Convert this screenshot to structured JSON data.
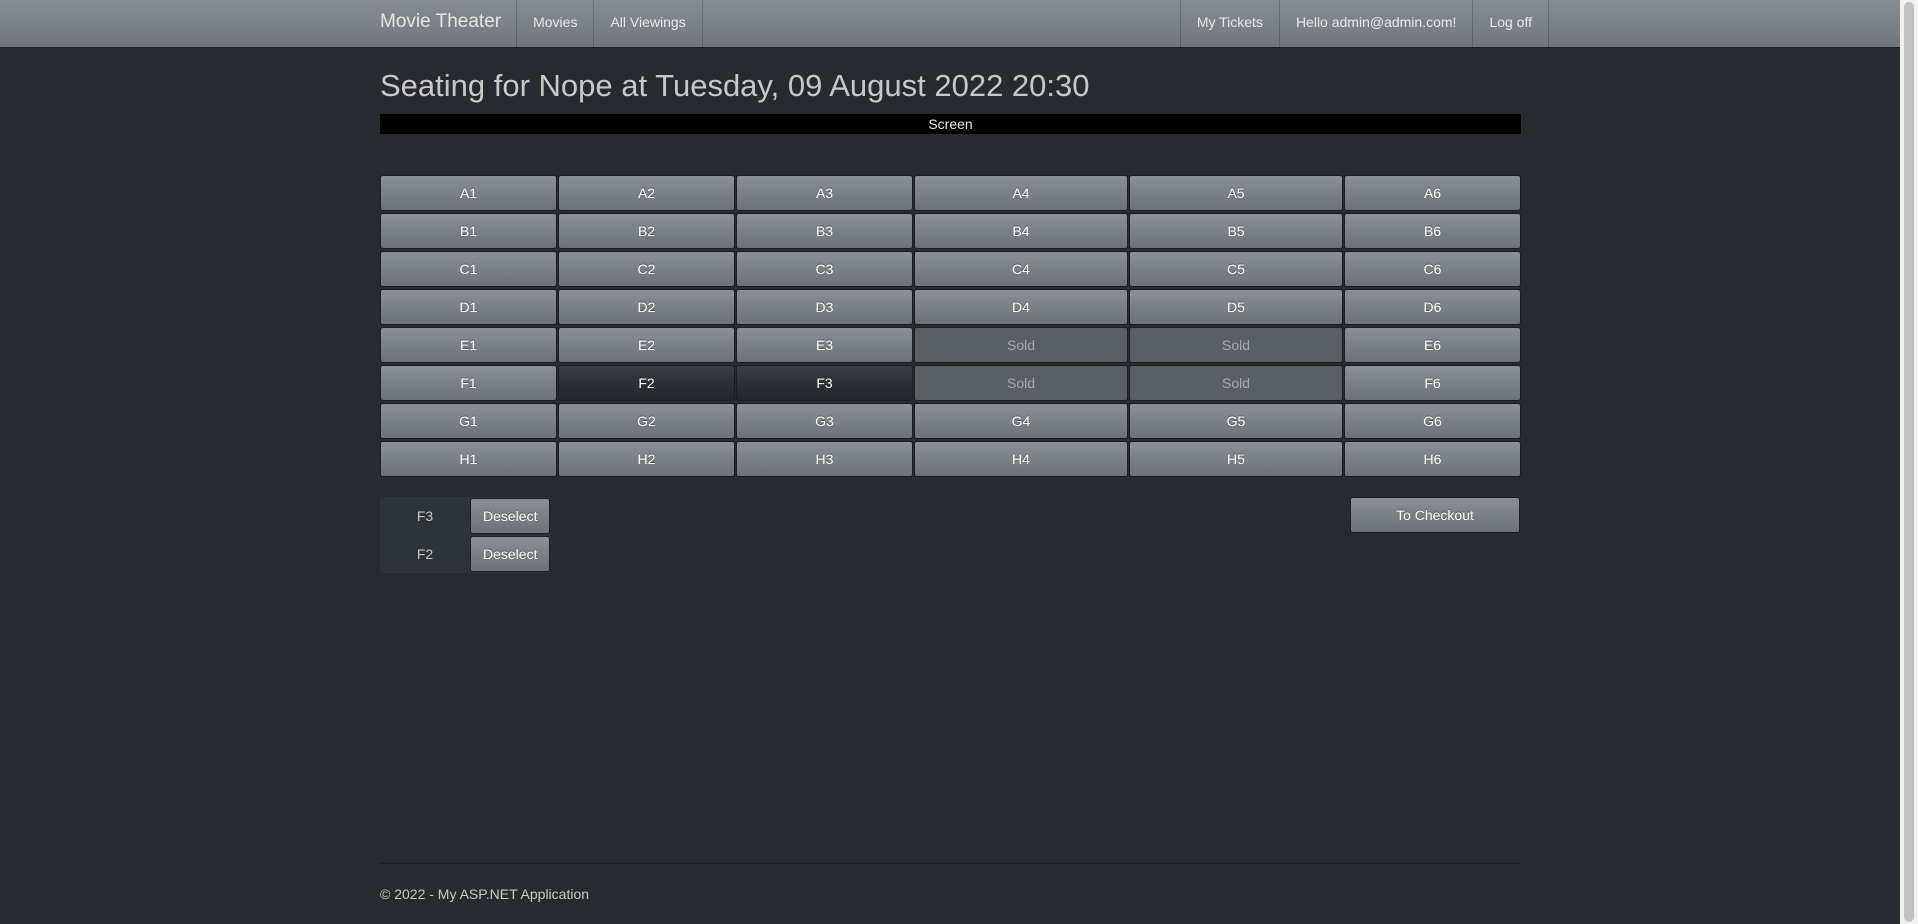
{
  "navbar": {
    "brand": "Movie Theater",
    "left_items": [
      "Movies",
      "All Viewings"
    ],
    "right_items": [
      "My Tickets",
      "Hello admin@admin.com!",
      "Log off"
    ]
  },
  "page": {
    "title": "Seating for Nope at Tuesday, 09 August 2022 20:30",
    "screen_label": "Screen"
  },
  "seats": [
    [
      {
        "label": "A1",
        "status": "available"
      },
      {
        "label": "A2",
        "status": "available"
      },
      {
        "label": "A3",
        "status": "available"
      },
      {
        "label": "A4",
        "status": "available"
      },
      {
        "label": "A5",
        "status": "available"
      },
      {
        "label": "A6",
        "status": "available"
      }
    ],
    [
      {
        "label": "B1",
        "status": "available"
      },
      {
        "label": "B2",
        "status": "available"
      },
      {
        "label": "B3",
        "status": "available"
      },
      {
        "label": "B4",
        "status": "available"
      },
      {
        "label": "B5",
        "status": "available"
      },
      {
        "label": "B6",
        "status": "available"
      }
    ],
    [
      {
        "label": "C1",
        "status": "available"
      },
      {
        "label": "C2",
        "status": "available"
      },
      {
        "label": "C3",
        "status": "available"
      },
      {
        "label": "C4",
        "status": "available"
      },
      {
        "label": "C5",
        "status": "available"
      },
      {
        "label": "C6",
        "status": "available"
      }
    ],
    [
      {
        "label": "D1",
        "status": "available"
      },
      {
        "label": "D2",
        "status": "available"
      },
      {
        "label": "D3",
        "status": "available"
      },
      {
        "label": "D4",
        "status": "available"
      },
      {
        "label": "D5",
        "status": "available"
      },
      {
        "label": "D6",
        "status": "available"
      }
    ],
    [
      {
        "label": "E1",
        "status": "available"
      },
      {
        "label": "E2",
        "status": "available"
      },
      {
        "label": "E3",
        "status": "available"
      },
      {
        "label": "Sold",
        "status": "sold"
      },
      {
        "label": "Sold",
        "status": "sold"
      },
      {
        "label": "E6",
        "status": "available"
      }
    ],
    [
      {
        "label": "F1",
        "status": "available"
      },
      {
        "label": "F2",
        "status": "selected"
      },
      {
        "label": "F3",
        "status": "selected"
      },
      {
        "label": "Sold",
        "status": "sold"
      },
      {
        "label": "Sold",
        "status": "sold"
      },
      {
        "label": "F6",
        "status": "available"
      }
    ],
    [
      {
        "label": "G1",
        "status": "available"
      },
      {
        "label": "G2",
        "status": "available"
      },
      {
        "label": "G3",
        "status": "available"
      },
      {
        "label": "G4",
        "status": "available"
      },
      {
        "label": "G5",
        "status": "available"
      },
      {
        "label": "G6",
        "status": "available"
      }
    ],
    [
      {
        "label": "H1",
        "status": "available"
      },
      {
        "label": "H2",
        "status": "available"
      },
      {
        "label": "H3",
        "status": "available"
      },
      {
        "label": "H4",
        "status": "available"
      },
      {
        "label": "H5",
        "status": "available"
      },
      {
        "label": "H6",
        "status": "available"
      }
    ]
  ],
  "selection": {
    "items": [
      {
        "seat": "F3",
        "button": "Deselect"
      },
      {
        "seat": "F2",
        "button": "Deselect"
      }
    ],
    "checkout_label": "To Checkout"
  },
  "footer": {
    "text": "© 2022 - My ASP.NET Application"
  },
  "colors": {
    "background": "#272b30",
    "navbar": "#7a8086",
    "screen": "#000000",
    "seat": "#7a8086",
    "seat_selected": "#2a2e33",
    "seat_sold": "#5a5f64"
  }
}
